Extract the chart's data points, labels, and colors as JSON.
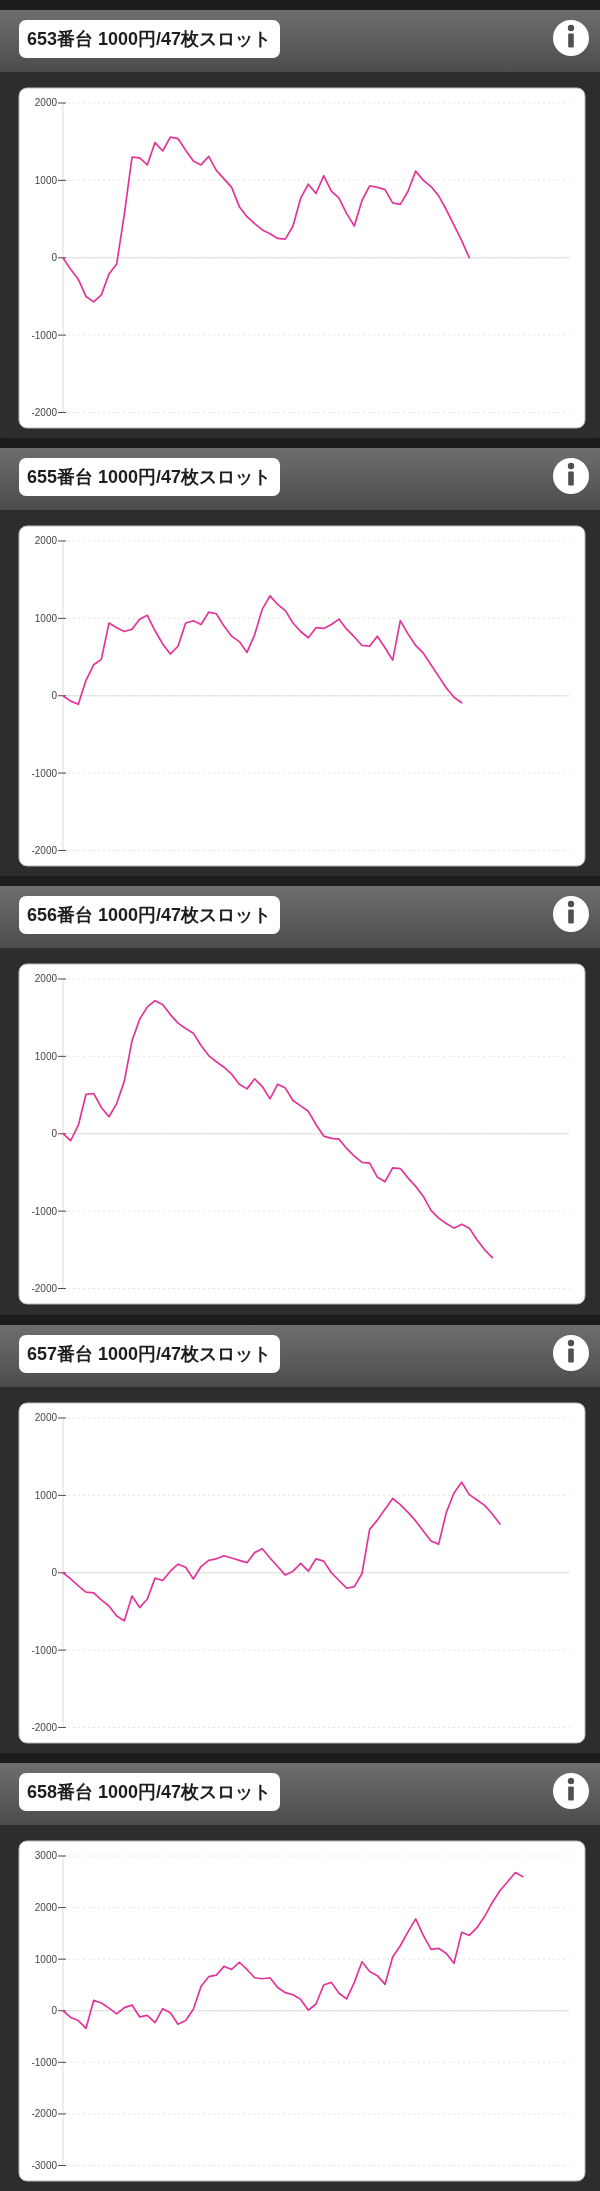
{
  "chart_data": [
    {
      "type": "line",
      "title": "653番台 1000円/47枚スロット",
      "categories": [
        null,
        null,
        null,
        null,
        null,
        null,
        null,
        null,
        null,
        null,
        null,
        null,
        null,
        null,
        null,
        null,
        null,
        null,
        null,
        null,
        null,
        null,
        null,
        null,
        null,
        null,
        null,
        null,
        null,
        null,
        null,
        null,
        null,
        null,
        null,
        null,
        null,
        null,
        null,
        null,
        null,
        null,
        null,
        null,
        null,
        null,
        null,
        null,
        null,
        null,
        null,
        null,
        null,
        null,
        null,
        null,
        null,
        null,
        null,
        null,
        null,
        null,
        null,
        null,
        null,
        null,
        null
      ],
      "series": [
        {
          "color": "#e2359a",
          "values": [
            0,
            -150,
            -280,
            -500,
            -570,
            -480,
            -210,
            -80,
            560,
            1300,
            1290,
            1200,
            1490,
            1380,
            1560,
            1540,
            1390,
            1250,
            1200,
            1310,
            1130,
            1020,
            910,
            660,
            530,
            440,
            360,
            310,
            250,
            240,
            410,
            770,
            950,
            830,
            1060,
            860,
            770,
            570,
            410,
            740,
            930,
            910,
            880,
            710,
            690,
            860,
            1120,
            1000,
            920,
            800,
            620,
            420,
            220,
            0,
            null,
            null,
            null,
            null,
            null,
            null,
            null,
            null,
            null,
            null,
            null,
            null,
            null
          ]
        }
      ],
      "ylim": [
        -2000,
        2000
      ],
      "yticks": [
        -2000,
        -1000,
        0,
        1000,
        2000
      ],
      "grid": "y",
      "tick_labels": "y",
      "marker": "none",
      "ref_lines": [
        {
          "axis": "y",
          "value": 0,
          "color": "#dedede",
          "line_style": "solid"
        }
      ]
    },
    {
      "type": "line",
      "title": "655番台 1000円/47枚スロット",
      "categories": [
        null,
        null,
        null,
        null,
        null,
        null,
        null,
        null,
        null,
        null,
        null,
        null,
        null,
        null,
        null,
        null,
        null,
        null,
        null,
        null,
        null,
        null,
        null,
        null,
        null,
        null,
        null,
        null,
        null,
        null,
        null,
        null,
        null,
        null,
        null,
        null,
        null,
        null,
        null,
        null,
        null,
        null,
        null,
        null,
        null,
        null,
        null,
        null,
        null,
        null,
        null,
        null,
        null,
        null,
        null,
        null,
        null,
        null,
        null,
        null,
        null,
        null,
        null,
        null,
        null,
        null,
        null
      ],
      "series": [
        {
          "color": "#e2359a",
          "values": [
            0,
            -70,
            -110,
            200,
            400,
            470,
            940,
            880,
            830,
            860,
            990,
            1040,
            840,
            670,
            540,
            640,
            940,
            970,
            920,
            1080,
            1060,
            900,
            770,
            700,
            560,
            790,
            1120,
            1290,
            1180,
            1100,
            940,
            830,
            750,
            880,
            870,
            920,
            990,
            860,
            760,
            650,
            640,
            770,
            620,
            460,
            970,
            800,
            650,
            550,
            400,
            250,
            100,
            -20,
            -90,
            null,
            null,
            null,
            null,
            null,
            null,
            null,
            null,
            null,
            null,
            null,
            null,
            null,
            null
          ]
        }
      ],
      "ylim": [
        -2000,
        2000
      ],
      "yticks": [
        -2000,
        -1000,
        0,
        1000,
        2000
      ],
      "grid": "y",
      "tick_labels": "y",
      "marker": "none",
      "ref_lines": [
        {
          "axis": "y",
          "value": 0,
          "color": "#dedede",
          "line_style": "solid"
        }
      ]
    },
    {
      "type": "line",
      "title": "656番台 1000円/47枚スロット",
      "categories": [
        null,
        null,
        null,
        null,
        null,
        null,
        null,
        null,
        null,
        null,
        null,
        null,
        null,
        null,
        null,
        null,
        null,
        null,
        null,
        null,
        null,
        null,
        null,
        null,
        null,
        null,
        null,
        null,
        null,
        null,
        null,
        null,
        null,
        null,
        null,
        null,
        null,
        null,
        null,
        null,
        null,
        null,
        null,
        null,
        null,
        null,
        null,
        null,
        null,
        null,
        null,
        null,
        null,
        null,
        null,
        null,
        null,
        null,
        null,
        null,
        null,
        null,
        null,
        null,
        null,
        null,
        null
      ],
      "series": [
        {
          "color": "#e2359a",
          "values": [
            0,
            -90,
            110,
            510,
            520,
            340,
            220,
            390,
            680,
            1200,
            1480,
            1640,
            1720,
            1670,
            1540,
            1430,
            1360,
            1300,
            1140,
            1010,
            930,
            860,
            770,
            640,
            580,
            710,
            610,
            450,
            640,
            590,
            430,
            360,
            290,
            120,
            -30,
            -60,
            -70,
            -190,
            -290,
            -370,
            -380,
            -560,
            -620,
            -440,
            -450,
            -570,
            -680,
            -810,
            -990,
            -1090,
            -1160,
            -1220,
            -1170,
            -1220,
            -1370,
            -1500,
            -1600,
            null,
            null,
            null,
            null,
            null,
            null,
            null,
            null,
            null,
            null
          ]
        }
      ],
      "ylim": [
        -2000,
        2000
      ],
      "yticks": [
        -2000,
        -1000,
        0,
        1000,
        2000
      ],
      "grid": "y",
      "tick_labels": "y",
      "marker": "none",
      "ref_lines": [
        {
          "axis": "y",
          "value": 0,
          "color": "#dedede",
          "line_style": "solid"
        }
      ]
    },
    {
      "type": "line",
      "title": "657番台 1000円/47枚スロット",
      "categories": [
        null,
        null,
        null,
        null,
        null,
        null,
        null,
        null,
        null,
        null,
        null,
        null,
        null,
        null,
        null,
        null,
        null,
        null,
        null,
        null,
        null,
        null,
        null,
        null,
        null,
        null,
        null,
        null,
        null,
        null,
        null,
        null,
        null,
        null,
        null,
        null,
        null,
        null,
        null,
        null,
        null,
        null,
        null,
        null,
        null,
        null,
        null,
        null,
        null,
        null,
        null,
        null,
        null,
        null,
        null,
        null,
        null,
        null,
        null,
        null,
        null,
        null,
        null,
        null,
        null,
        null,
        null
      ],
      "series": [
        {
          "color": "#e2359a",
          "values": [
            0,
            -80,
            -170,
            -250,
            -260,
            -350,
            -430,
            -560,
            -620,
            -300,
            -450,
            -340,
            -70,
            -100,
            20,
            110,
            70,
            -80,
            80,
            160,
            180,
            220,
            190,
            160,
            130,
            260,
            310,
            190,
            80,
            -30,
            20,
            120,
            20,
            180,
            150,
            0,
            -100,
            -200,
            -180,
            -10,
            560,
            680,
            820,
            960,
            880,
            780,
            670,
            540,
            410,
            370,
            780,
            1030,
            1170,
            1010,
            940,
            870,
            760,
            630,
            null,
            null,
            null,
            null,
            null,
            null,
            null,
            null,
            null
          ]
        }
      ],
      "ylim": [
        -2000,
        2000
      ],
      "yticks": [
        -2000,
        -1000,
        0,
        1000,
        2000
      ],
      "grid": "y",
      "tick_labels": "y",
      "marker": "none",
      "ref_lines": [
        {
          "axis": "y",
          "value": 0,
          "color": "#dedede",
          "line_style": "solid"
        }
      ]
    },
    {
      "type": "line",
      "title": "658番台 1000円/47枚スロット",
      "categories": [
        null,
        null,
        null,
        null,
        null,
        null,
        null,
        null,
        null,
        null,
        null,
        null,
        null,
        null,
        null,
        null,
        null,
        null,
        null,
        null,
        null,
        null,
        null,
        null,
        null,
        null,
        null,
        null,
        null,
        null,
        null,
        null,
        null,
        null,
        null,
        null,
        null,
        null,
        null,
        null,
        null,
        null,
        null,
        null,
        null,
        null,
        null,
        null,
        null,
        null,
        null,
        null,
        null,
        null,
        null,
        null,
        null,
        null,
        null,
        null,
        null,
        null,
        null,
        null,
        null,
        null,
        null
      ],
      "series": [
        {
          "color": "#e2359a",
          "values": [
            0,
            -130,
            -190,
            -340,
            200,
            150,
            50,
            -60,
            60,
            110,
            -120,
            -90,
            -230,
            40,
            -40,
            -260,
            -190,
            30,
            470,
            660,
            690,
            860,
            800,
            940,
            800,
            640,
            620,
            640,
            450,
            350,
            310,
            220,
            10,
            130,
            500,
            550,
            340,
            230,
            550,
            950,
            760,
            680,
            510,
            1040,
            1260,
            1530,
            1780,
            1460,
            1190,
            1210,
            1110,
            920,
            1520,
            1460,
            1610,
            1830,
            2100,
            2330,
            2500,
            2680,
            2600,
            null,
            null,
            null,
            null,
            null,
            null
          ]
        }
      ],
      "ylim": [
        -3000,
        3000
      ],
      "yticks": [
        -3000,
        -2000,
        -1000,
        0,
        1000,
        2000,
        3000
      ],
      "grid": "y",
      "tick_labels": "y",
      "marker": "none",
      "ref_lines": [
        {
          "axis": "y",
          "value": 0,
          "color": "#dedede",
          "line_style": "solid"
        }
      ]
    }
  ]
}
